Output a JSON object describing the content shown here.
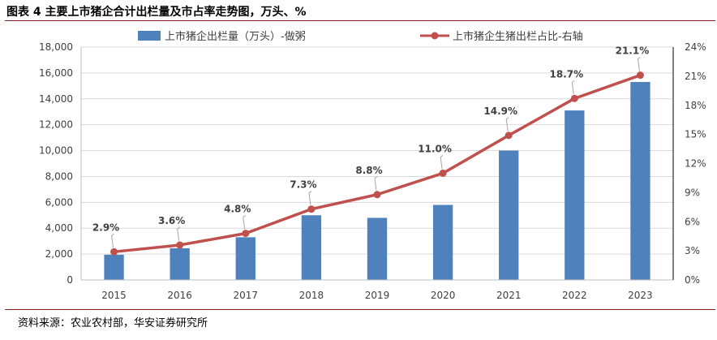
{
  "figure_title": "图表 4 主要上市猪企合计出栏量及市占率走势图，万头、%",
  "source": "资料来源：农业农村部，华安证券研究所",
  "colors": {
    "bar": "#4f81bd",
    "line": "#c0504d",
    "title_rule": "#8a1c1c"
  },
  "chart_data": {
    "type": "bar",
    "title": "",
    "xlabel": "",
    "ylabel": "",
    "categories": [
      "2015",
      "2016",
      "2017",
      "2018",
      "2019",
      "2020",
      "2021",
      "2022",
      "2023"
    ],
    "series": [
      {
        "name": "上市猪企出栏量（万头）-做粥",
        "type": "bar",
        "axis": "left",
        "values": [
          1950,
          2450,
          3300,
          5000,
          4800,
          5800,
          10000,
          13100,
          15300
        ]
      },
      {
        "name": "上市猪企生猪出栏占比-右轴",
        "type": "line",
        "axis": "right",
        "values": [
          2.9,
          3.6,
          4.8,
          7.3,
          8.8,
          11.0,
          14.9,
          18.7,
          21.1
        ],
        "labels": [
          "2.9%",
          "3.6%",
          "4.8%",
          "7.3%",
          "8.8%",
          "11.0%",
          "14.9%",
          "18.7%",
          "21.1%"
        ]
      }
    ],
    "ylim": [
      0,
      18000
    ],
    "yticks": [
      "0",
      "2,000",
      "4,000",
      "6,000",
      "8,000",
      "10,000",
      "12,000",
      "14,000",
      "16,000",
      "18,000"
    ],
    "y2lim": [
      0,
      24
    ],
    "y2ticks": [
      "0%",
      "3%",
      "6%",
      "9%",
      "12%",
      "15%",
      "18%",
      "21%",
      "24%"
    ],
    "grid": true,
    "legend": "top"
  }
}
